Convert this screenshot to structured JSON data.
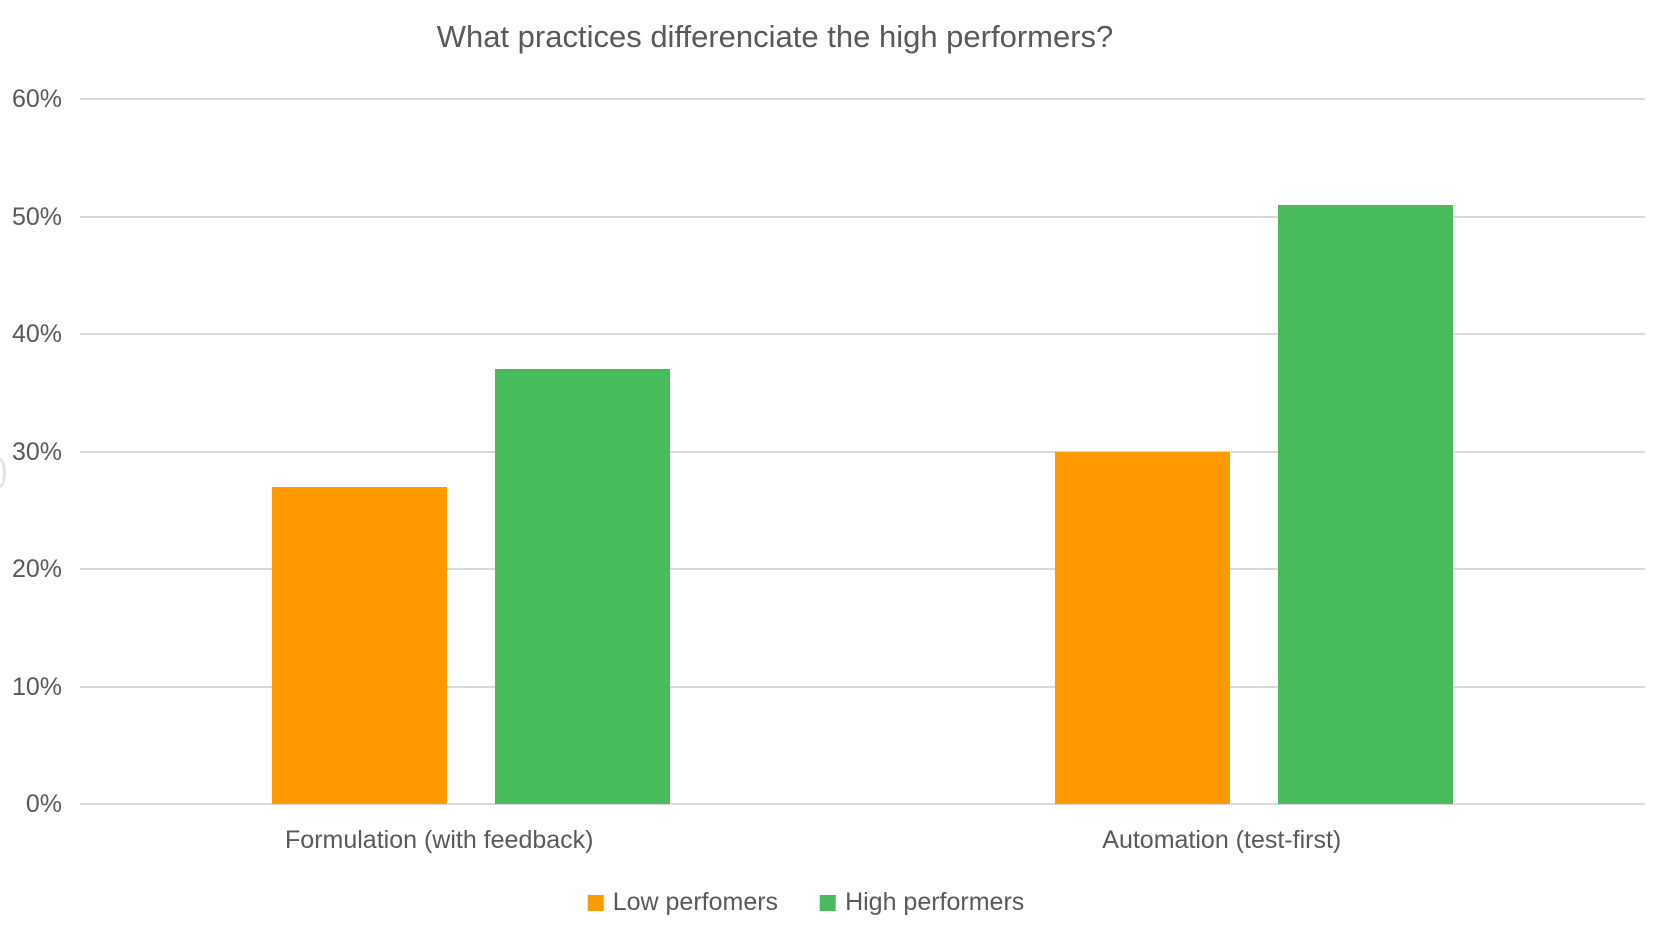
{
  "title": "What practices differenciate the high performers?",
  "chart_data": {
    "type": "bar",
    "title": "What practices differenciate the high performers?",
    "categories": [
      "Formulation (with feedback)",
      "Automation (test-first)"
    ],
    "series": [
      {
        "name": "Low perfomers",
        "color": "#FE9900",
        "values": [
          27,
          30
        ]
      },
      {
        "name": "High performers",
        "color": "#48BB5D",
        "values": [
          37,
          51
        ]
      }
    ],
    "xlabel": "",
    "ylabel": "",
    "ylim": [
      0,
      60
    ],
    "y_ticks": [
      0,
      10,
      20,
      30,
      40,
      50,
      60
    ],
    "y_tick_labels": [
      "0%",
      "10%",
      "20%",
      "30%",
      "40%",
      "50%",
      "60%"
    ],
    "grid": true,
    "legend_position": "bottom"
  },
  "style": {
    "background": "#FFFFFF",
    "text_color": "#595959",
    "gridline_color": "#DADADA"
  }
}
